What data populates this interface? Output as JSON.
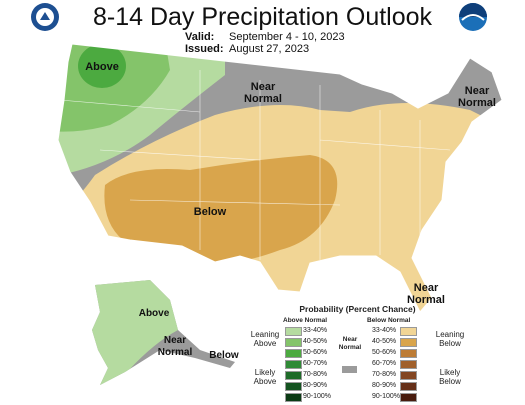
{
  "header": {
    "title": "8-14 Day Precipitation Outlook",
    "valid_label": "Valid:",
    "valid": "September 4 - 10, 2023",
    "issued_label": "Issued:",
    "issued": "August 27, 2023"
  },
  "map_labels": [
    "Above",
    "Near Normal",
    "Near Normal",
    "Below",
    "Near Normal",
    "Above",
    "Near Normal",
    "Below"
  ],
  "legend": {
    "title": "Probability (Percent Chance)",
    "above_heading": "Above Normal",
    "below_heading": "Below Normal",
    "near_heading": "Near Normal",
    "near_color": "#9b9b9b",
    "leaning_above": "Leaning Above",
    "likely_above": "Likely Above",
    "leaning_below": "Leaning Below",
    "likely_below": "Likely Below",
    "above": [
      {
        "label": "33-40%",
        "color": "#b5dba0"
      },
      {
        "label": "40-50%",
        "color": "#84c46a"
      },
      {
        "label": "50-60%",
        "color": "#4caa40"
      },
      {
        "label": "60-70%",
        "color": "#2f8a36"
      },
      {
        "label": "70-80%",
        "color": "#1e6b28"
      },
      {
        "label": "80-90%",
        "color": "#145320"
      },
      {
        "label": "90-100%",
        "color": "#0b3a14"
      }
    ],
    "below": [
      {
        "label": "33-40%",
        "color": "#f1d595"
      },
      {
        "label": "40-50%",
        "color": "#d9a54c"
      },
      {
        "label": "50-60%",
        "color": "#bd7c35"
      },
      {
        "label": "60-70%",
        "color": "#a0602b"
      },
      {
        "label": "70-80%",
        "color": "#834622"
      },
      {
        "label": "80-90%",
        "color": "#652f18"
      },
      {
        "label": "90-100%",
        "color": "#481c0e"
      }
    ]
  }
}
